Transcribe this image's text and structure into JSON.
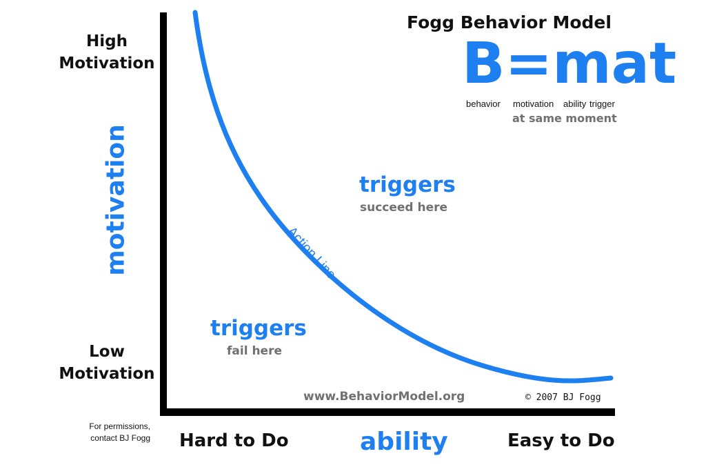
{
  "title": "Fogg Behavior Model",
  "formula": {
    "text": "B=mat",
    "labels": [
      "behavior",
      "motivation",
      "ability",
      "trigger"
    ],
    "note": "at same moment"
  },
  "y_axis": {
    "high": "High Motivation",
    "low": "Low Motivation",
    "label": "motivation"
  },
  "x_axis": {
    "left": "Hard to Do",
    "label": "ability",
    "right": "Easy to Do"
  },
  "curve": {
    "label": "Action Line"
  },
  "regions": {
    "above": {
      "title": "triggers",
      "subtitle": "succeed here"
    },
    "below": {
      "title": "triggers",
      "subtitle": "fail here"
    }
  },
  "footer": {
    "url": "www.BehaviorModel.org",
    "copyright": "© 2007 BJ Fogg",
    "permissions": "For permissions, contact BJ Fogg"
  },
  "colors": {
    "accent": "#1e7ff0",
    "axis": "#000000",
    "muted": "#707070"
  }
}
